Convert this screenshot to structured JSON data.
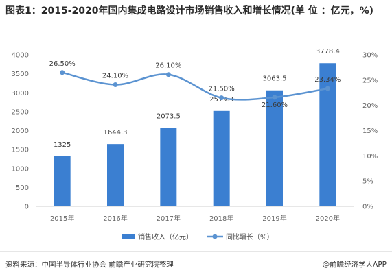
{
  "title": "图表1：2015-2020年国内集成电路设计市场销售收入和增长情况(单 位 ：亿元，%)",
  "source": "资料来源：中国半导体行业协会 前瞻产业研究院整理",
  "brand": "@前瞻经济学人APP",
  "brand_icon": "copyright-at-icon",
  "colors": {
    "bar": "#3b7fd1",
    "line": "#5b93d1",
    "axis": "#cfcfcf"
  },
  "chart_data": {
    "type": "bar",
    "categories": [
      "2015年",
      "2016年",
      "2017年",
      "2018年",
      "2019年",
      "2020年"
    ],
    "series": [
      {
        "name": "销售收入（亿元）",
        "type": "bar",
        "axis": "left",
        "values": [
          1325,
          1644.3,
          2073.5,
          2519.3,
          3063.5,
          3778.4
        ],
        "labels": [
          "1325",
          "1644.3",
          "2073.5",
          "2519.3",
          "3063.5",
          "3778.4"
        ]
      },
      {
        "name": "同比增长（%）",
        "type": "line",
        "axis": "right",
        "values": [
          26.5,
          24.1,
          26.1,
          21.5,
          21.6,
          23.34
        ],
        "labels": [
          "26.50%",
          "24.10%",
          "26.10%",
          "21.50%",
          "21.60%",
          "23.34%"
        ]
      }
    ],
    "y_left": {
      "min": 0,
      "max": 4000,
      "step": 500,
      "ticks": [
        "0",
        "500",
        "1000",
        "1500",
        "2000",
        "2500",
        "3000",
        "3500",
        "4000"
      ]
    },
    "y_right": {
      "min": 0,
      "max": 30,
      "step": 5,
      "ticks": [
        "0%",
        "5%",
        "10%",
        "15%",
        "20%",
        "25%",
        "30%"
      ]
    },
    "grid": false,
    "legend_position": "bottom"
  }
}
